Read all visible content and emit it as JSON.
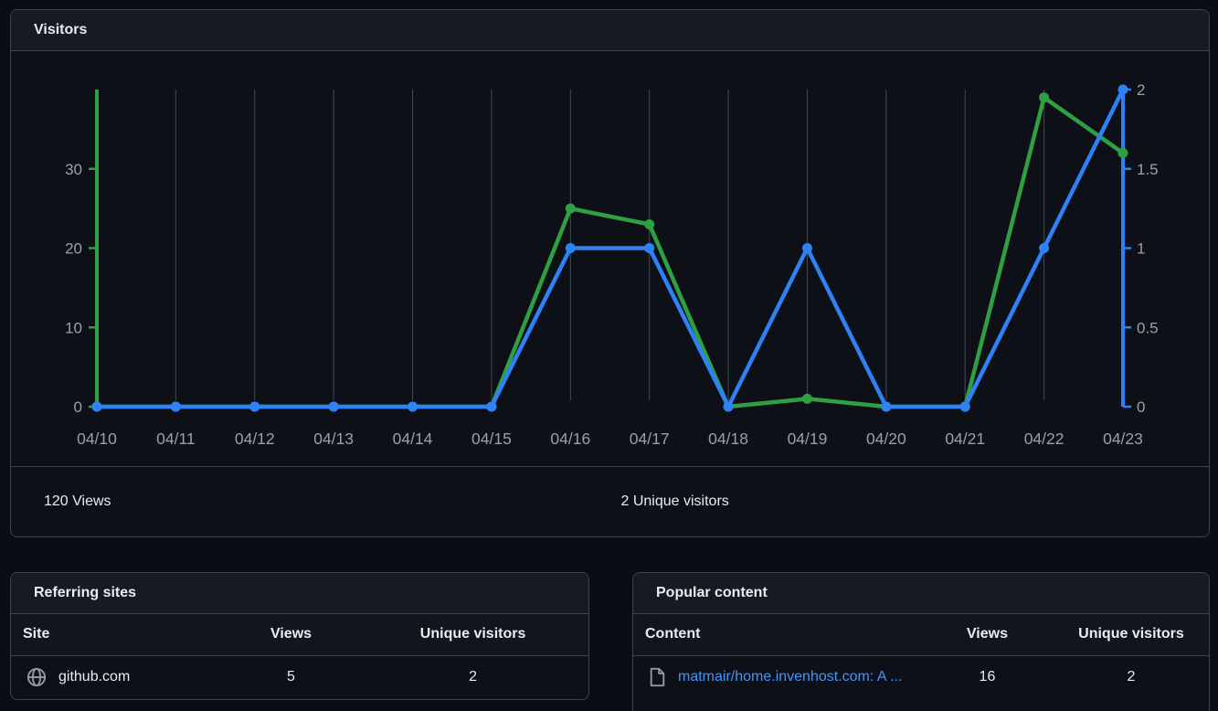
{
  "chart_card": {
    "title": "Visitors",
    "stats": {
      "views_total": "120 Views",
      "unique_total": "2 Unique visitors"
    }
  },
  "chart_data": {
    "type": "line",
    "x": [
      "04/10",
      "04/11",
      "04/12",
      "04/13",
      "04/14",
      "04/15",
      "04/16",
      "04/17",
      "04/18",
      "04/19",
      "04/20",
      "04/21",
      "04/22",
      "04/23"
    ],
    "series": [
      {
        "name": "Views",
        "axis": "left",
        "color": "#2ea043",
        "values": [
          0,
          0,
          0,
          0,
          0,
          0,
          25,
          23,
          0,
          1,
          0,
          0,
          39,
          32
        ]
      },
      {
        "name": "Unique visitors",
        "axis": "right",
        "color": "#2f81f7",
        "values": [
          0,
          0,
          0,
          0,
          0,
          0,
          1,
          1,
          0,
          1,
          0,
          0,
          1,
          2
        ]
      }
    ],
    "left_axis": {
      "ticks": [
        "0",
        "10",
        "20",
        "30"
      ],
      "range": [
        0,
        40
      ]
    },
    "right_axis": {
      "ticks": [
        "0",
        "0.5",
        "1",
        "1.5",
        "2"
      ],
      "range": [
        0,
        2
      ]
    },
    "grid": "vertical",
    "legend": "none"
  },
  "referring_sites": {
    "title": "Referring sites",
    "columns": [
      "Site",
      "Views",
      "Unique visitors"
    ],
    "rows": [
      {
        "site": "github.com",
        "views": "5",
        "unique": "2"
      }
    ]
  },
  "popular_content": {
    "title": "Popular content",
    "columns": [
      "Content",
      "Views",
      "Unique visitors"
    ],
    "rows": [
      {
        "content": "matmair/home.invenhost.com: A ...",
        "views": "16",
        "unique": "2"
      }
    ]
  }
}
